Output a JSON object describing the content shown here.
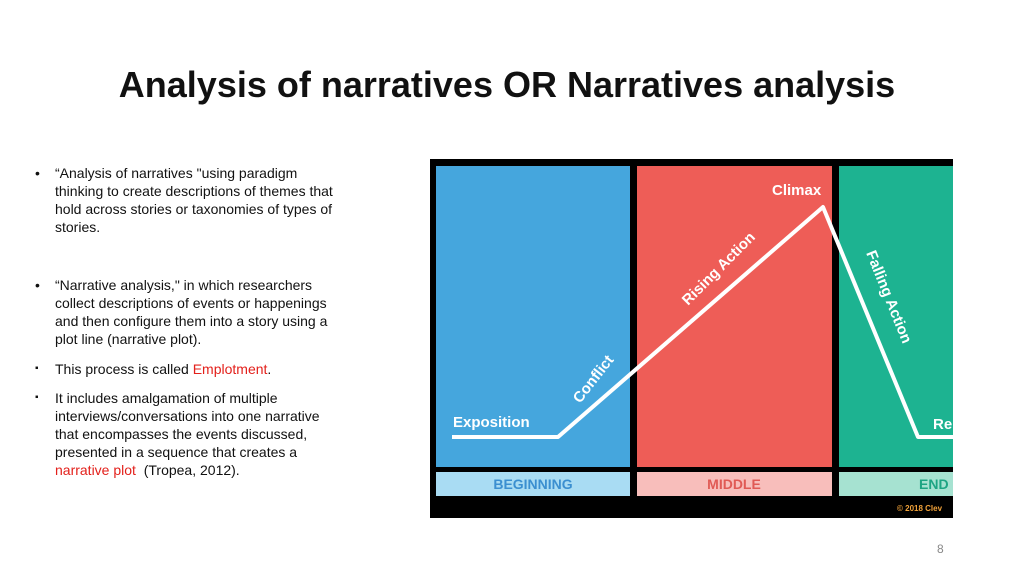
{
  "title": "Analysis of narratives OR Narratives analysis",
  "bullets": [
    {
      "marker": "•",
      "lines": [
        [
          {
            "text": "“Analysis of narratives \"using paradigm"
          }
        ],
        [
          {
            "text": "thinking to create descriptions of themes that"
          }
        ],
        [
          {
            "text": "hold across stories or taxonomies of types of"
          }
        ],
        [
          {
            "text": "stories."
          }
        ]
      ]
    },
    {
      "marker": "•",
      "lines": [
        [
          {
            "text": "“Narrative analysis,\" in which researchers"
          }
        ],
        [
          {
            "text": "collect descriptions of events or happenings"
          }
        ],
        [
          {
            "text": "and then configure them into a story using a"
          }
        ],
        [
          {
            "text": "plot line (narrative plot)."
          }
        ]
      ]
    },
    {
      "marker": "▪",
      "lines": [
        [
          {
            "text": "This process is called "
          },
          {
            "text": "Emplotment",
            "color": "#e3201b"
          },
          {
            "text": "."
          }
        ]
      ]
    },
    {
      "marker": "▪",
      "lines": [
        [
          {
            "text": "It includes amalgamation of multiple"
          }
        ],
        [
          {
            "text": "interviews/conversations into one narrative"
          }
        ],
        [
          {
            "text": "that encompasses the events discussed,"
          }
        ],
        [
          {
            "text": "presented in a sequence that creates a"
          }
        ],
        [
          {
            "text": "narrative plot",
            "color": "#e3201b"
          },
          {
            "text": "  (Tropea, 2012)."
          }
        ]
      ]
    }
  ],
  "diagram": {
    "exposition": "Exposition",
    "conflict": "Conflict",
    "rising_action": "Rising Action",
    "climax": "Climax",
    "falling_action": "Falling Action",
    "resolution": "Re",
    "beginning": "BEGINNING",
    "middle": "MIDDLE",
    "end": "END",
    "copyright": "© 2018 Clev"
  },
  "page_number": "8"
}
